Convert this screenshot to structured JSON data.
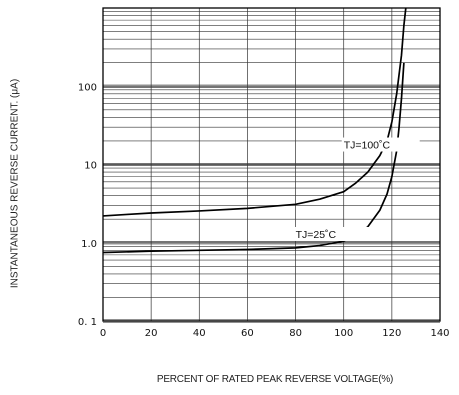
{
  "chart_data": {
    "type": "line",
    "xlabel": "PERCENT OF RATED PEAK REVERSE VOLTAGE(%)",
    "ylabel": "INSTANTANEOUS REVERSE  CURRENT. (μA)",
    "xlim": [
      0,
      140
    ],
    "ylim": [
      0.1,
      1000
    ],
    "yscale": "log",
    "grid": true,
    "x_ticks": [
      "0",
      "20",
      "40",
      "60",
      "80",
      "100",
      "120",
      "140"
    ],
    "y_ticks": [
      {
        "value": 0.1,
        "label": "0. 1"
      },
      {
        "value": 1,
        "label": "1.0"
      },
      {
        "value": 10,
        "label": "10"
      },
      {
        "value": 100,
        "label": "100"
      }
    ],
    "series": [
      {
        "name": "TJ=100˚C",
        "label_at": [
          100,
          16
        ],
        "x": [
          0,
          10,
          20,
          40,
          60,
          80,
          90,
          100,
          105,
          110,
          115,
          118,
          120,
          122,
          124,
          125,
          125.8
        ],
        "y": [
          2.2,
          2.3,
          2.4,
          2.55,
          2.75,
          3.1,
          3.6,
          4.5,
          5.8,
          8,
          13,
          20,
          35,
          80,
          250,
          600,
          1000
        ]
      },
      {
        "name": "TJ=25˚C",
        "label_at": [
          80,
          1.15
        ],
        "x": [
          0,
          20,
          40,
          60,
          80,
          90,
          100,
          105,
          110,
          115,
          118,
          120,
          122,
          123,
          124,
          125
        ],
        "y": [
          0.75,
          0.78,
          0.8,
          0.82,
          0.86,
          0.92,
          1.05,
          1.25,
          1.6,
          2.6,
          4.2,
          7,
          15,
          30,
          70,
          200
        ]
      }
    ]
  }
}
